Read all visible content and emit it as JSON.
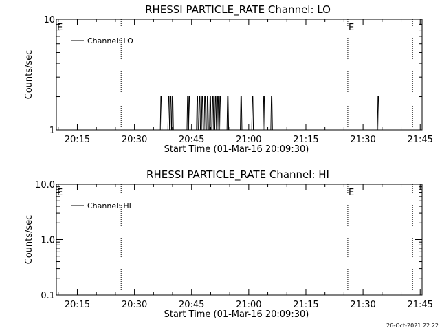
{
  "chart_data": [
    {
      "type": "line",
      "title": "RHESSI PARTICLE_RATE Channel: LO",
      "xlabel": "Start Time (01-Mar-16 20:09:30)",
      "ylabel": "Counts/sec",
      "y_scale": "log",
      "ylim": [
        1,
        10
      ],
      "y_ticks": [
        {
          "value": 1,
          "label": "1"
        },
        {
          "value": 10,
          "label": "10"
        }
      ],
      "xlim_minutes": [
        0,
        96
      ],
      "x_ticks": [
        {
          "value": 5.5,
          "label": "20:15"
        },
        {
          "value": 20.5,
          "label": "20:30"
        },
        {
          "value": 35.5,
          "label": "20:45"
        },
        {
          "value": 50.5,
          "label": "21:00"
        },
        {
          "value": 65.5,
          "label": "21:15"
        },
        {
          "value": 80.5,
          "label": "21:30"
        },
        {
          "value": 95.5,
          "label": "21:45"
        }
      ],
      "legend": {
        "label": "Channel: LO",
        "position": "top-left"
      },
      "vlines": [
        {
          "x": 17,
          "label": ""
        },
        {
          "x": 76.5,
          "label": "E"
        },
        {
          "x": 93.5,
          "label": ""
        }
      ],
      "left_marker": "E",
      "series": [
        {
          "name": "Channel: LO",
          "spikes": [
            {
              "x": 27.5,
              "y": 2
            },
            {
              "x": 29.5,
              "y": 2
            },
            {
              "x": 30.0,
              "y": 2
            },
            {
              "x": 30.5,
              "y": 2
            },
            {
              "x": 34.5,
              "y": 2
            },
            {
              "x": 34.9,
              "y": 2
            },
            {
              "x": 37.0,
              "y": 2
            },
            {
              "x": 37.6,
              "y": 2
            },
            {
              "x": 38.3,
              "y": 2
            },
            {
              "x": 39.0,
              "y": 2
            },
            {
              "x": 39.7,
              "y": 2
            },
            {
              "x": 40.4,
              "y": 2
            },
            {
              "x": 41.1,
              "y": 2
            },
            {
              "x": 41.8,
              "y": 2
            },
            {
              "x": 42.4,
              "y": 2
            },
            {
              "x": 43.0,
              "y": 2
            },
            {
              "x": 45.0,
              "y": 2
            },
            {
              "x": 48.5,
              "y": 2
            },
            {
              "x": 51.5,
              "y": 2
            },
            {
              "x": 54.5,
              "y": 2
            },
            {
              "x": 56.5,
              "y": 2
            },
            {
              "x": 84.5,
              "y": 2
            }
          ]
        }
      ]
    },
    {
      "type": "line",
      "title": "RHESSI PARTICLE_RATE Channel: HI",
      "xlabel": "Start Time (01-Mar-16 20:09:30)",
      "ylabel": "Counts/sec",
      "y_scale": "log",
      "ylim": [
        0.1,
        10
      ],
      "y_ticks": [
        {
          "value": 0.1,
          "label": "0.1"
        },
        {
          "value": 1,
          "label": "1.0"
        },
        {
          "value": 10,
          "label": "10.0"
        }
      ],
      "xlim_minutes": [
        0,
        96
      ],
      "x_ticks": [
        {
          "value": 5.5,
          "label": "20:15"
        },
        {
          "value": 20.5,
          "label": "20:30"
        },
        {
          "value": 35.5,
          "label": "20:45"
        },
        {
          "value": 50.5,
          "label": "21:00"
        },
        {
          "value": 65.5,
          "label": "21:15"
        },
        {
          "value": 80.5,
          "label": "21:30"
        },
        {
          "value": 95.5,
          "label": "21:45"
        }
      ],
      "legend": {
        "label": "Channel: HI",
        "position": "top-left"
      },
      "vlines": [
        {
          "x": 17,
          "label": ""
        },
        {
          "x": 76.5,
          "label": "E"
        },
        {
          "x": 93.5,
          "label": ""
        }
      ],
      "left_marker": "E",
      "series": [
        {
          "name": "Channel: HI",
          "spikes": []
        }
      ]
    }
  ],
  "footer": {
    "timestamp": "26-Oct-2021 22:22"
  }
}
